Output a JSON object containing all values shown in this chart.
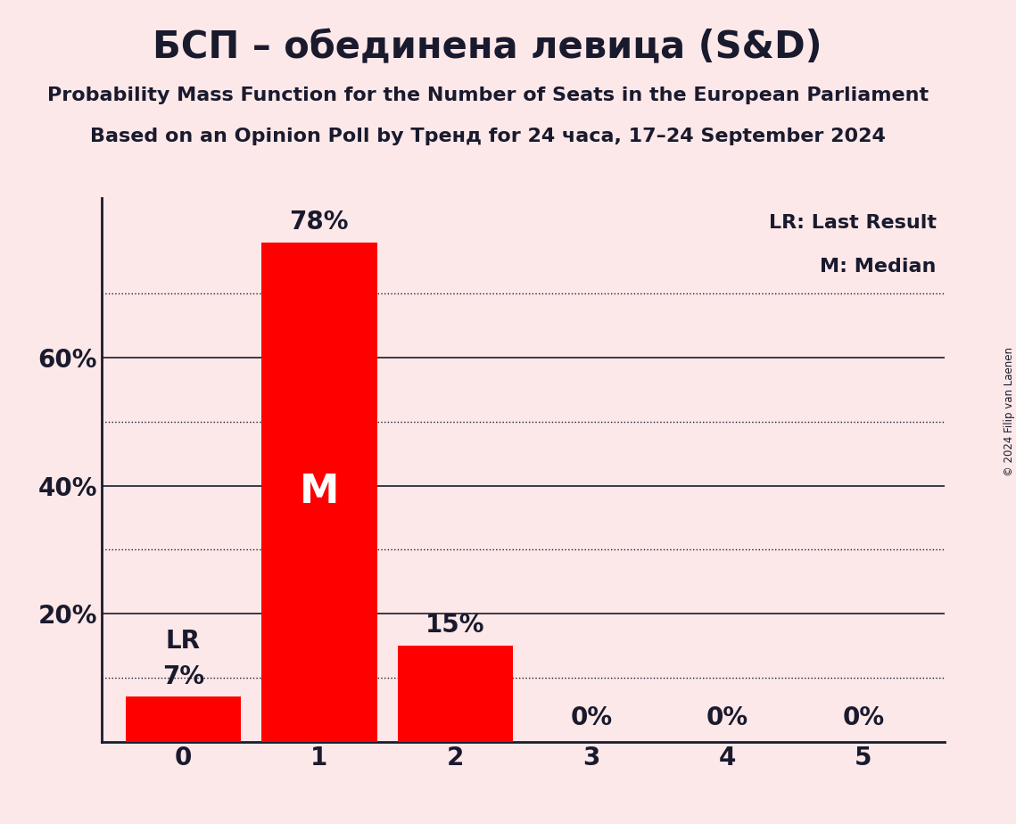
{
  "title": "БСП – обединена левица (S&D)",
  "subtitle1": "Probability Mass Function for the Number of Seats in the European Parliament",
  "subtitle2": "Based on an Opinion Poll by Тренд for 24 часа, 17–24 September 2024",
  "copyright": "© 2024 Filip van Laenen",
  "categories": [
    0,
    1,
    2,
    3,
    4,
    5
  ],
  "values": [
    0.07,
    0.78,
    0.15,
    0.0,
    0.0,
    0.0
  ],
  "bar_color": "#ff0000",
  "background_color": "#fce8e8",
  "text_color": "#1a1a2e",
  "ylim": [
    0,
    0.85
  ],
  "dotted_grid_lines": [
    0.1,
    0.3,
    0.5,
    0.7
  ],
  "solid_grid_lines": [
    0.2,
    0.4,
    0.6
  ],
  "median_bar": 1,
  "lr_bar": 0,
  "legend_lr": "LR: Last Result",
  "legend_m": "M: Median",
  "bar_labels": [
    "7%",
    "78%",
    "15%",
    "0%",
    "0%",
    "0%"
  ],
  "lr_label": "LR",
  "m_label": "M",
  "title_fontsize": 30,
  "subtitle_fontsize": 16,
  "axis_fontsize": 20,
  "bar_label_fontsize": 20,
  "legend_fontsize": 16
}
